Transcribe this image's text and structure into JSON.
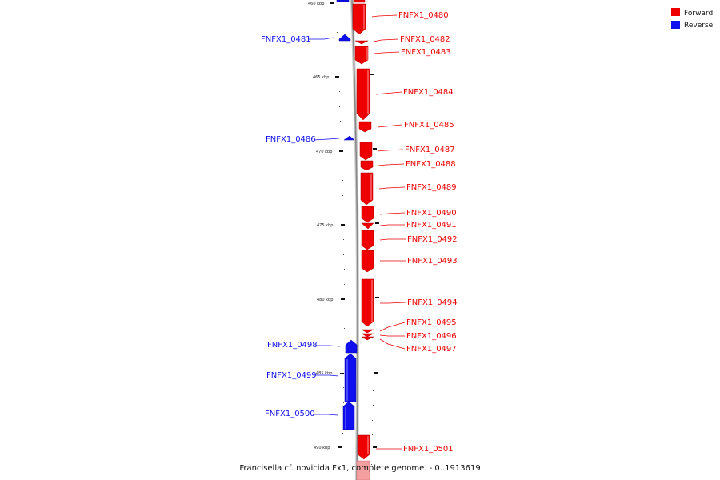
{
  "caption": "Francisella cf. novicida Fx1, complete genome. - 0..1913619",
  "legend": [
    {
      "label": "Forward",
      "color": "#ee0000"
    },
    {
      "label": "Reverse",
      "color": "#1010ee"
    }
  ],
  "colors": {
    "forward": "#ee0000",
    "reverse": "#1010ee",
    "backbone": "#999999"
  },
  "ticks": [
    "460 kbp",
    "465 kbp",
    "470 kbp",
    "475 kbp",
    "480 kbp",
    "485 kbp",
    "490 kbp"
  ],
  "genes_forward": [
    {
      "name": "FNFX1_0480"
    },
    {
      "name": "FNFX1_0482"
    },
    {
      "name": "FNFX1_0483"
    },
    {
      "name": "FNFX1_0484"
    },
    {
      "name": "FNFX1_0485"
    },
    {
      "name": "FNFX1_0487"
    },
    {
      "name": "FNFX1_0488"
    },
    {
      "name": "FNFX1_0489"
    },
    {
      "name": "FNFX1_0490"
    },
    {
      "name": "FNFX1_0491"
    },
    {
      "name": "FNFX1_0492"
    },
    {
      "name": "FNFX1_0493"
    },
    {
      "name": "FNFX1_0494"
    },
    {
      "name": "FNFX1_0495"
    },
    {
      "name": "FNFX1_0496"
    },
    {
      "name": "FNFX1_0497"
    },
    {
      "name": "FNFX1_0501"
    }
  ],
  "genes_reverse": [
    {
      "name": "FNFX1_0481"
    },
    {
      "name": "FNFX1_0486"
    },
    {
      "name": "FNFX1_0498"
    },
    {
      "name": "FNFX1_0499"
    },
    {
      "name": "FNFX1_0500"
    }
  ]
}
